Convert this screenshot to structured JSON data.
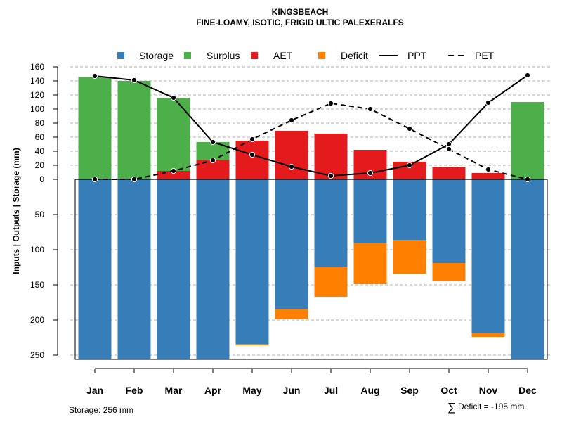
{
  "chart_data": {
    "type": "bar",
    "title": "KINGSBEACH",
    "subtitle": "FINE-LOAMY, ISOTIC, FRIGID ULTIC PALEXERALFS",
    "ylabel": "Inputs | Outputs | Storage     (mm)",
    "categories": [
      "Jan",
      "Feb",
      "Mar",
      "Apr",
      "May",
      "Jun",
      "Jul",
      "Aug",
      "Sep",
      "Oct",
      "Nov",
      "Dec"
    ],
    "upper_axis": {
      "ylim": [
        0,
        160
      ],
      "ticks": [
        "0",
        "20",
        "40",
        "60",
        "80",
        "100",
        "120",
        "140",
        "160"
      ]
    },
    "lower_axis": {
      "ylim": [
        0,
        256
      ],
      "ticks": [
        "50",
        "100",
        "150",
        "200",
        "250"
      ]
    },
    "legend": {
      "placement": "top",
      "items": [
        {
          "label": "Storage",
          "kind": "square",
          "color": "#377eb8"
        },
        {
          "label": "Surplus",
          "kind": "square",
          "color": "#4daf4a"
        },
        {
          "label": "AET",
          "kind": "square",
          "color": "#e41a1c"
        },
        {
          "label": "Deficit",
          "kind": "square",
          "color": "#ff7f00"
        },
        {
          "label": "PPT",
          "kind": "solid-line",
          "color": "#000000"
        },
        {
          "label": "PET",
          "kind": "dashed-line",
          "color": "#000000"
        }
      ]
    },
    "series": [
      {
        "name": "Surplus",
        "color": "#4daf4a",
        "values": [
          146,
          140,
          104,
          26,
          0,
          0,
          0,
          0,
          0,
          0,
          0,
          110
        ]
      },
      {
        "name": "AET",
        "color": "#e41a1c",
        "values": [
          0,
          0,
          12,
          27,
          55,
          69,
          65,
          42,
          25,
          18,
          9,
          0
        ]
      },
      {
        "name": "Storage",
        "color": "#377eb8",
        "values": [
          256,
          256,
          256,
          256,
          234,
          184,
          124,
          91,
          86,
          119,
          219,
          256
        ]
      },
      {
        "name": "Deficit",
        "color": "#ff7f00",
        "values": [
          0,
          0,
          0,
          0,
          2,
          15,
          43,
          58,
          48,
          26,
          5,
          0
        ]
      },
      {
        "name": "PPT",
        "color": "#000000",
        "values": [
          147,
          141,
          116,
          53,
          35,
          18,
          5,
          9,
          20,
          50,
          109,
          148
        ]
      },
      {
        "name": "PET",
        "color": "#000000",
        "values": [
          0,
          0,
          12,
          27,
          57,
          84,
          108,
          100,
          72,
          43,
          14,
          0
        ]
      }
    ],
    "annotations": {
      "storage": "Storage: 256 mm",
      "deficit_symbol": "∑",
      "deficit": "Deficit = -195 mm"
    }
  }
}
